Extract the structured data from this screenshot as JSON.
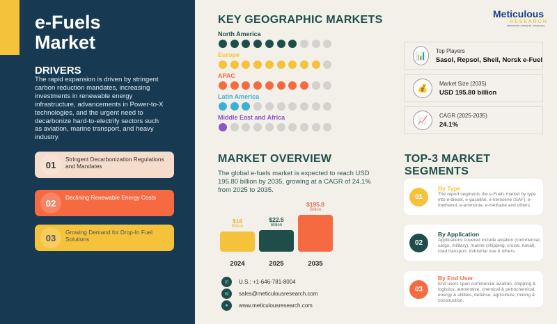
{
  "title_line1": "e-Fuels",
  "title_line2": "Market",
  "drivers": {
    "heading": "DRIVERS",
    "text": "The rapid expansion is driven by stringent carbon reduction mandates, increasing investments in renewable energy infrastructure, advancements in Power-to-X technologies, and the urgent need to decarbonize hard-to-electrify sectors such as aviation, marine transport, and heavy industry.",
    "items": [
      {
        "num": "01",
        "label": "Stringent Decarbonization Regulations and Mandates",
        "bg": "#f6dccd",
        "fg": "#333"
      },
      {
        "num": "02",
        "label": "Declining Renewable Energy Costs",
        "bg": "#f66a42",
        "fg": "#fff"
      },
      {
        "num": "03",
        "label": "Growing Demand for Drop-In Fuel Solutions",
        "bg": "#f5c33b",
        "fg": "#555"
      }
    ]
  },
  "geo": {
    "heading": "KEY GEOGRAPHIC MARKETS",
    "regions": [
      {
        "name": "North America",
        "filled": 7,
        "total": 10,
        "color": "#1f4e4a"
      },
      {
        "name": "Europe",
        "filled": 9,
        "total": 10,
        "color": "#f5c33b"
      },
      {
        "name": "APAC",
        "filled": 8,
        "total": 10,
        "color": "#f66a42"
      },
      {
        "name": "Latin America",
        "filled": 3,
        "total": 10,
        "color": "#3ab0d6"
      },
      {
        "name": "Middle East and Africa",
        "filled": 1,
        "total": 10,
        "color": "#8a55c4"
      }
    ]
  },
  "logo": {
    "name": "Meticulous",
    "sub": "RESEARCH",
    "tagline": "INNOVATION • INSIGHTS • SINCE 2011"
  },
  "stats": [
    {
      "icon": "bar-chart-icon",
      "label": "Top Players",
      "value": "Sasol, Repsol, Shell, Norsk e-Fuel",
      "glyph": "📊"
    },
    {
      "icon": "money-bag-icon",
      "label": "Market Size (2035)",
      "value": "USD 195.80 billion",
      "glyph": "💰"
    },
    {
      "icon": "trend-chart-icon",
      "label": "CAGR (2025-2035)",
      "value": "24.1%",
      "glyph": "📈"
    }
  ],
  "overview": {
    "heading": "MARKET OVERVIEW",
    "text": "The global e-fuels market is expected to reach USD 195.80 billion by 2035, growing at a CAGR of 24.1% from 2025 to 2035."
  },
  "chart_data": {
    "type": "bar",
    "categories": [
      "2024",
      "2025",
      "2035"
    ],
    "values": [
      18,
      22.5,
      195.8
    ],
    "labels": [
      "$18",
      "$22.5",
      "$195.8"
    ],
    "unit": "Billion",
    "colors": [
      "#f5c33b",
      "#1f4e4a",
      "#f66a42"
    ],
    "label_colors": [
      "#e8b630",
      "#1f4e4a",
      "#e06a55"
    ]
  },
  "contacts": [
    {
      "icon": "phone-icon",
      "text": "U.S.: +1-646-781-8004",
      "glyph": "✆"
    },
    {
      "icon": "email-icon",
      "text": "sales@meticulousresearch.com",
      "glyph": "✉"
    },
    {
      "icon": "globe-icon",
      "text": "www.meticulousresearch.com",
      "glyph": "●"
    }
  ],
  "segments": {
    "heading": "TOP-3 MARKET SEGMENTS",
    "items": [
      {
        "num": "01",
        "title": "By Type",
        "text": "The report segments the e-Fuels market by type into e-diesel, e-gasoline, e-kerosene (SAF), e-methanol, e-ammonia, e-methane and others.",
        "color": "#f5c33b"
      },
      {
        "num": "02",
        "title": "By Application",
        "text": "Applications covered include aviation (commercial, cargo, military), marine (shipping, cruise, naval), road transport, industrial use & others.",
        "color": "#1f4e4a"
      },
      {
        "num": "03",
        "title": "By End User",
        "text": "End users span commercial aviation, shipping & logistics, automotive, chemical & petrochemical, energy & utilities, defense, agriculture, mining & construction.",
        "color": "#f66a42"
      }
    ]
  }
}
